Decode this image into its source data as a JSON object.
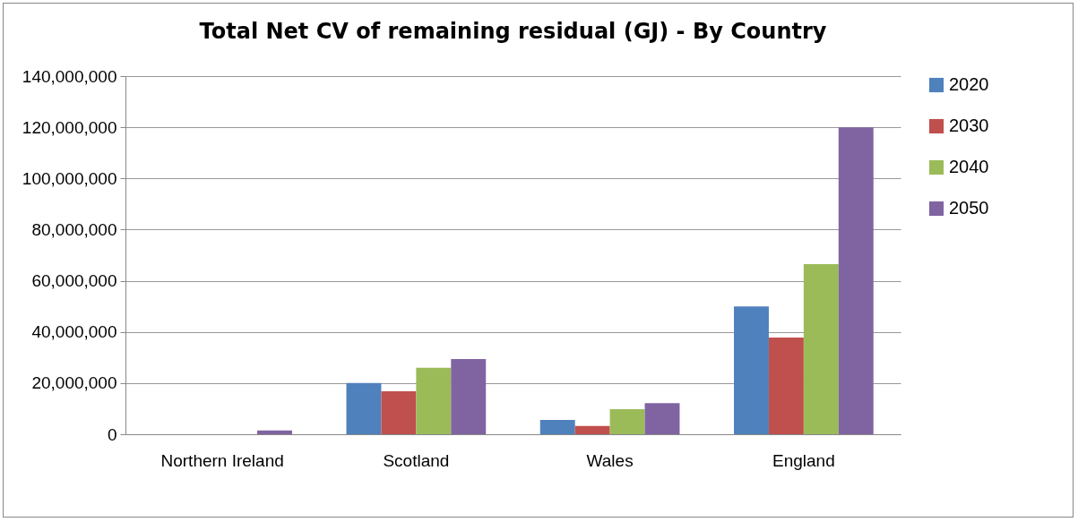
{
  "chart_data": {
    "type": "bar",
    "title": "Total Net CV of remaining residual (GJ) - By Country",
    "categories": [
      "Northern Ireland",
      "Scotland",
      "Wales",
      "England"
    ],
    "series": [
      {
        "name": "2020",
        "color": "#4f81bd",
        "values": [
          0,
          20000000,
          5600000,
          50000000
        ]
      },
      {
        "name": "2030",
        "color": "#c0504d",
        "values": [
          0,
          16800000,
          3200000,
          37800000
        ]
      },
      {
        "name": "2040",
        "color": "#9bbb59",
        "values": [
          0,
          26000000,
          9800000,
          66500000
        ]
      },
      {
        "name": "2050",
        "color": "#8064a2",
        "values": [
          1500000,
          29400000,
          12200000,
          120000000
        ]
      }
    ],
    "ylim": [
      0,
      140000000
    ],
    "yticks": [
      0,
      {
        "value": 20000000,
        "label": "20,000,000"
      },
      {
        "value": 40000000,
        "label": "40,000,000"
      },
      {
        "value": 60000000,
        "label": "60,000,000"
      },
      {
        "value": 80000000,
        "label": "80,000,000"
      },
      {
        "value": 100000000,
        "label": "100,000,000"
      },
      {
        "value": 120000000,
        "label": "120,000,000"
      },
      {
        "value": 140000000,
        "label": "140,000,000"
      }
    ],
    "grid": "y",
    "legend": "right"
  }
}
